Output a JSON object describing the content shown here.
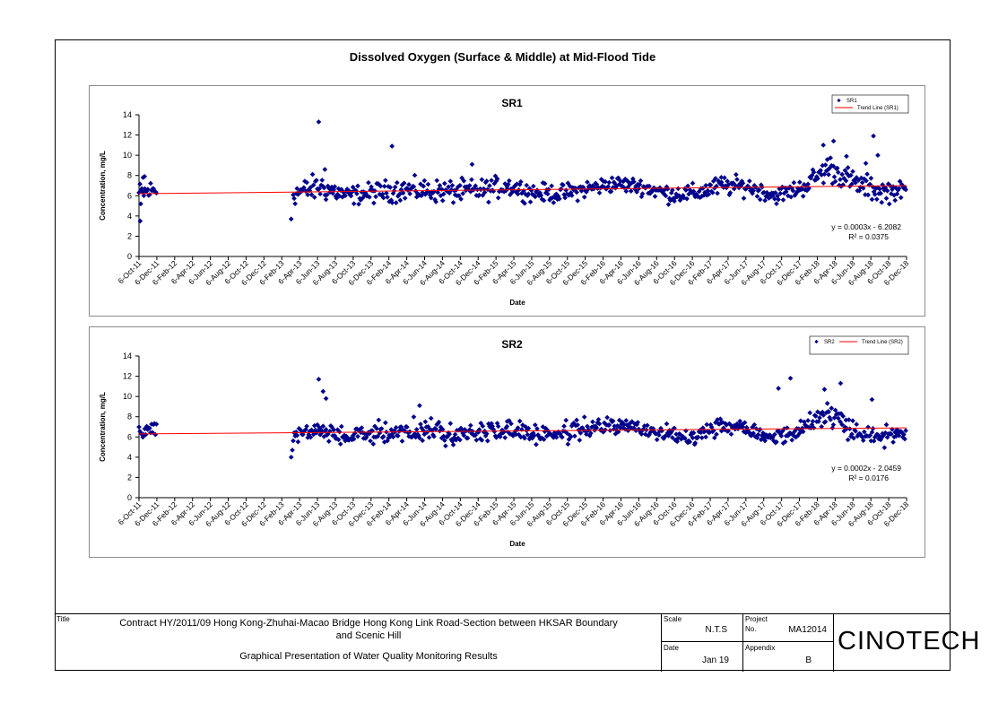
{
  "main_title": "Dissolved Oxygen (Surface & Middle) at Mid-Flood Tide",
  "title_block": {
    "title_label": "Title",
    "title_line1": "Contract HY/2011/09 Hong Kong-Zhuhai-Macao Bridge Hong Kong Link Road-Section between HKSAR Boundary",
    "title_line2": "and Scenic Hill",
    "subtitle": "Graphical Presentation of Water Quality Monitoring Results",
    "scale_label": "Scale",
    "scale_value": "N.T.S",
    "date_label": "Date",
    "date_value": "Jan 19",
    "project_label": "Project",
    "project_no_label": "No.",
    "project_no_value": "MA12014",
    "appendix_label": "Appendix",
    "appendix_value": "B",
    "logo": "CINOTECH"
  },
  "chart_data": [
    {
      "type": "scatter",
      "title": "SR1",
      "xlabel": "Date",
      "ylabel": "Concentration, mg/L",
      "ylim": [
        0,
        14
      ],
      "yticks": [
        0,
        2,
        4,
        6,
        8,
        10,
        12,
        14
      ],
      "xlim": [
        "2011-10-06",
        "2018-12-06"
      ],
      "xtick_labels": [
        "6-Oct-11",
        "6-Dec-11",
        "6-Feb-12",
        "6-Apr-12",
        "6-Jun-12",
        "6-Aug-12",
        "6-Oct-12",
        "6-Dec-12",
        "6-Feb-13",
        "6-Apr-13",
        "6-Jun-13",
        "6-Aug-13",
        "6-Oct-13",
        "6-Dec-13",
        "6-Feb-14",
        "6-Apr-14",
        "6-Jun-14",
        "6-Aug-14",
        "6-Oct-14",
        "6-Dec-14",
        "6-Feb-15",
        "6-Apr-15",
        "6-Jun-15",
        "6-Aug-15",
        "6-Oct-15",
        "6-Dec-15",
        "6-Feb-16",
        "6-Apr-16",
        "6-Jun-16",
        "6-Aug-16",
        "6-Oct-16",
        "6-Dec-16",
        "6-Feb-17",
        "6-Apr-17",
        "6-Jun-17",
        "6-Aug-17",
        "6-Oct-17",
        "6-Dec-17",
        "6-Feb-18",
        "6-Apr-18",
        "6-Jun-18",
        "6-Aug-18",
        "6-Oct-18",
        "6-Dec-18"
      ],
      "legend_position": "top-right",
      "legend": [
        "SR1",
        "Trend Line (SR1)"
      ],
      "trend_equation": "y = 0.0003x - 6.2082",
      "r_squared": "R² = 0.0375",
      "trend_line": {
        "start": [
          "2011-10-06",
          6.2
        ],
        "end": [
          "2018-12-06",
          7.0
        ]
      },
      "colors": {
        "points": "#00008b",
        "trend": "#ff0000"
      },
      "series": [
        {
          "name": "SR1",
          "profile": [
            [
              "2011-10-06",
              6.2,
              1.0
            ],
            [
              "2011-12-06",
              6.6,
              1.0
            ],
            [
              "2013-03-15",
              6.2,
              1.0
            ],
            [
              "2013-06-15",
              6.9,
              1.2
            ],
            [
              "2013-09-15",
              6.0,
              0.8
            ],
            [
              "2013-12-15",
              6.3,
              0.9
            ],
            [
              "2014-03-15",
              6.6,
              1.0
            ],
            [
              "2014-06-15",
              6.5,
              1.0
            ],
            [
              "2014-09-15",
              6.4,
              1.0
            ],
            [
              "2014-12-15",
              6.5,
              1.0
            ],
            [
              "2015-03-15",
              7.0,
              0.9
            ],
            [
              "2015-06-15",
              6.3,
              0.8
            ],
            [
              "2015-09-15",
              6.2,
              0.8
            ],
            [
              "2015-12-15",
              6.7,
              0.8
            ],
            [
              "2016-03-15",
              7.2,
              0.7
            ],
            [
              "2016-06-15",
              6.9,
              0.7
            ],
            [
              "2016-09-15",
              6.2,
              0.8
            ],
            [
              "2016-12-15",
              6.2,
              0.8
            ],
            [
              "2017-03-15",
              7.0,
              0.9
            ],
            [
              "2017-06-15",
              6.9,
              0.8
            ],
            [
              "2017-09-15",
              6.0,
              0.7
            ],
            [
              "2017-12-15",
              6.8,
              0.8
            ],
            [
              "2018-03-15",
              8.8,
              1.2
            ],
            [
              "2018-06-15",
              7.2,
              1.0
            ],
            [
              "2018-09-15",
              6.4,
              1.1
            ],
            [
              "2018-12-06",
              6.6,
              0.6
            ]
          ],
          "outliers": [
            [
              "2011-10-10",
              3.5
            ],
            [
              "2011-10-12",
              5.2
            ],
            [
              "2011-10-20",
              7.8
            ],
            [
              "2011-10-25",
              7.9
            ],
            [
              "2013-03-08",
              3.7
            ],
            [
              "2013-06-10",
              13.3
            ],
            [
              "2013-07-01",
              8.6
            ],
            [
              "2014-02-15",
              10.9
            ],
            [
              "2014-11-15",
              9.1
            ],
            [
              "2018-02-25",
              11.0
            ],
            [
              "2018-04-01",
              11.4
            ],
            [
              "2018-05-15",
              9.9
            ],
            [
              "2018-07-20",
              9.2
            ],
            [
              "2018-08-15",
              11.9
            ],
            [
              "2018-08-30",
              10.0
            ]
          ]
        }
      ]
    },
    {
      "type": "scatter",
      "title": "SR2",
      "xlabel": "Date",
      "ylabel": "Concentration, mg/L",
      "ylim": [
        0,
        14
      ],
      "yticks": [
        0,
        2,
        4,
        6,
        8,
        10,
        12,
        14
      ],
      "xlim": [
        "2011-10-06",
        "2018-12-06"
      ],
      "xtick_labels": [
        "6-Oct-11",
        "6-Dec-11",
        "6-Feb-12",
        "6-Apr-12",
        "6-Jun-12",
        "6-Aug-12",
        "6-Oct-12",
        "6-Dec-12",
        "6-Feb-13",
        "6-Apr-13",
        "6-Jun-13",
        "6-Aug-13",
        "6-Oct-13",
        "6-Dec-13",
        "6-Feb-14",
        "6-Apr-14",
        "6-Jun-14",
        "6-Aug-14",
        "6-Oct-14",
        "6-Dec-14",
        "6-Feb-15",
        "6-Apr-15",
        "6-Jun-15",
        "6-Aug-15",
        "6-Oct-15",
        "6-Dec-15",
        "6-Feb-16",
        "6-Apr-16",
        "6-Jun-16",
        "6-Aug-16",
        "6-Oct-16",
        "6-Dec-16",
        "6-Feb-17",
        "6-Apr-17",
        "6-Jun-17",
        "6-Aug-17",
        "6-Oct-17",
        "6-Dec-17",
        "6-Feb-18",
        "6-Apr-18",
        "6-Jun-18",
        "6-Aug-18",
        "6-Oct-18",
        "6-Dec-18"
      ],
      "legend_position": "top-right",
      "legend": [
        "SR2",
        "Trend Line (SR2)"
      ],
      "trend_equation": "y = 0.0002x - 2.0459",
      "r_squared": "R² = 0.0176",
      "trend_line": {
        "start": [
          "2011-10-06",
          6.3
        ],
        "end": [
          "2018-12-06",
          6.9
        ]
      },
      "colors": {
        "points": "#00008b",
        "trend": "#ff0000"
      },
      "series": [
        {
          "name": "SR2",
          "profile": [
            [
              "2011-10-06",
              6.4,
              0.6
            ],
            [
              "2011-12-06",
              7.0,
              0.6
            ],
            [
              "2013-03-15",
              6.5,
              1.0
            ],
            [
              "2013-06-15",
              6.5,
              0.9
            ],
            [
              "2013-09-15",
              6.0,
              0.7
            ],
            [
              "2013-12-15",
              6.3,
              0.8
            ],
            [
              "2014-03-15",
              6.6,
              1.0
            ],
            [
              "2014-06-15",
              6.6,
              1.0
            ],
            [
              "2014-09-15",
              6.3,
              0.9
            ],
            [
              "2014-12-15",
              6.4,
              0.9
            ],
            [
              "2015-03-15",
              6.8,
              0.9
            ],
            [
              "2015-06-15",
              6.3,
              0.8
            ],
            [
              "2015-09-15",
              6.3,
              0.8
            ],
            [
              "2015-12-15",
              6.9,
              0.8
            ],
            [
              "2016-03-15",
              7.1,
              0.7
            ],
            [
              "2016-06-15",
              6.8,
              0.7
            ],
            [
              "2016-09-15",
              6.2,
              0.8
            ],
            [
              "2016-12-15",
              6.2,
              0.8
            ],
            [
              "2017-03-15",
              7.2,
              0.8
            ],
            [
              "2017-06-15",
              6.9,
              0.8
            ],
            [
              "2017-09-15",
              5.9,
              0.7
            ],
            [
              "2017-12-15",
              6.8,
              0.8
            ],
            [
              "2018-03-15",
              8.5,
              1.2
            ],
            [
              "2018-06-15",
              6.5,
              0.9
            ],
            [
              "2018-09-15",
              6.1,
              0.9
            ],
            [
              "2018-12-06",
              6.5,
              0.6
            ]
          ],
          "outliers": [
            [
              "2013-03-08",
              4.0
            ],
            [
              "2013-03-12",
              4.7
            ],
            [
              "2013-06-10",
              11.7
            ],
            [
              "2013-06-25",
              10.5
            ],
            [
              "2013-07-05",
              9.8
            ],
            [
              "2014-05-20",
              9.1
            ],
            [
              "2017-09-25",
              10.8
            ],
            [
              "2017-11-05",
              11.8
            ],
            [
              "2018-03-01",
              10.7
            ],
            [
              "2018-04-25",
              11.3
            ],
            [
              "2018-08-10",
              9.7
            ]
          ]
        }
      ]
    }
  ]
}
